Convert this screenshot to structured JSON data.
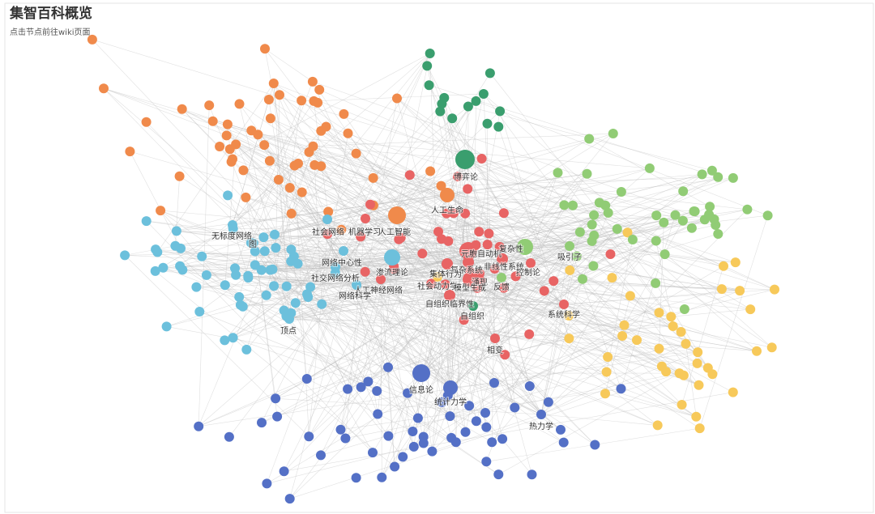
{
  "header": {
    "title": "集智百科概览",
    "subtitle": "点击节点前往wiki页面"
  },
  "nodes": [
    {
      "label": "博弈论"
    },
    {
      "label": "人工生命"
    },
    {
      "label": "人工智能"
    },
    {
      "label": "机器学习"
    },
    {
      "label": "社会网络"
    },
    {
      "label": "无标度网络"
    },
    {
      "label": "图"
    },
    {
      "label": "网络中心性"
    },
    {
      "label": "渗流理论"
    },
    {
      "label": "社交网络分析"
    },
    {
      "label": "人工神经网络"
    },
    {
      "label": "网络科学"
    },
    {
      "label": "元胞自动机"
    },
    {
      "label": "复杂性"
    },
    {
      "label": "非线性系统"
    },
    {
      "label": "控制论"
    },
    {
      "label": "吸引子"
    },
    {
      "label": "复杂系统"
    },
    {
      "label": "集体行为"
    },
    {
      "label": "涌现"
    },
    {
      "label": "社会动力学"
    },
    {
      "label": "模型生成"
    },
    {
      "label": "反馈"
    },
    {
      "label": "自组织临界性"
    },
    {
      "label": "自组织"
    },
    {
      "label": "系统科学"
    },
    {
      "label": "相变"
    },
    {
      "label": "顶点"
    },
    {
      "label": "信息论"
    },
    {
      "label": "统计力学"
    },
    {
      "label": "热力学"
    }
  ]
}
